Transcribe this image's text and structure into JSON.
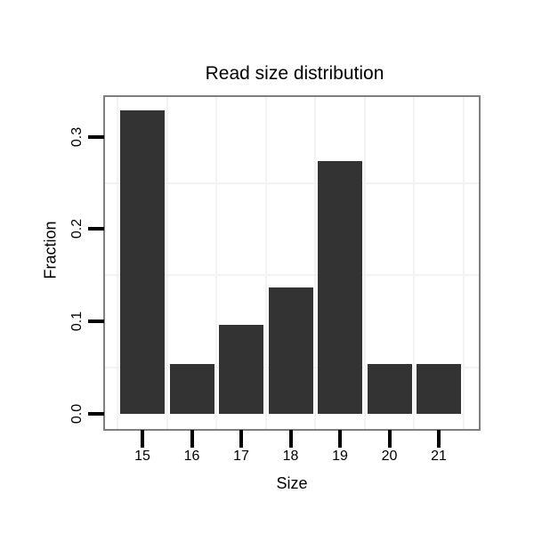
{
  "chart_data": {
    "type": "bar",
    "title": "Read size distribution",
    "xlabel": "Size",
    "ylabel": "Fraction",
    "categories": [
      "15",
      "16",
      "17",
      "18",
      "19",
      "20",
      "21"
    ],
    "values": [
      0.329,
      0.054,
      0.096,
      0.137,
      0.274,
      0.054,
      0.054
    ],
    "x_tick_labels": [
      "15",
      "16",
      "17",
      "18",
      "19",
      "20",
      "21"
    ],
    "y_tick_labels": [
      "0.0",
      "0.1",
      "0.2",
      "0.3"
    ],
    "y_tick_values": [
      0.0,
      0.1,
      0.2,
      0.3
    ],
    "ylim": [
      -0.017,
      0.344
    ],
    "grid": {
      "horizontal_lines_at": [
        0.05,
        0.15,
        0.25
      ],
      "vertical_lines": "between-categories",
      "style": "faint-light-gray"
    },
    "legend": "none",
    "bar_color": "#333333"
  },
  "colors": {
    "bar": "#333333",
    "panel_border": "#7f7f7f",
    "gridline": "#f3f3f3",
    "tick": "#000000",
    "text": "#000000",
    "background": "#ffffff"
  }
}
